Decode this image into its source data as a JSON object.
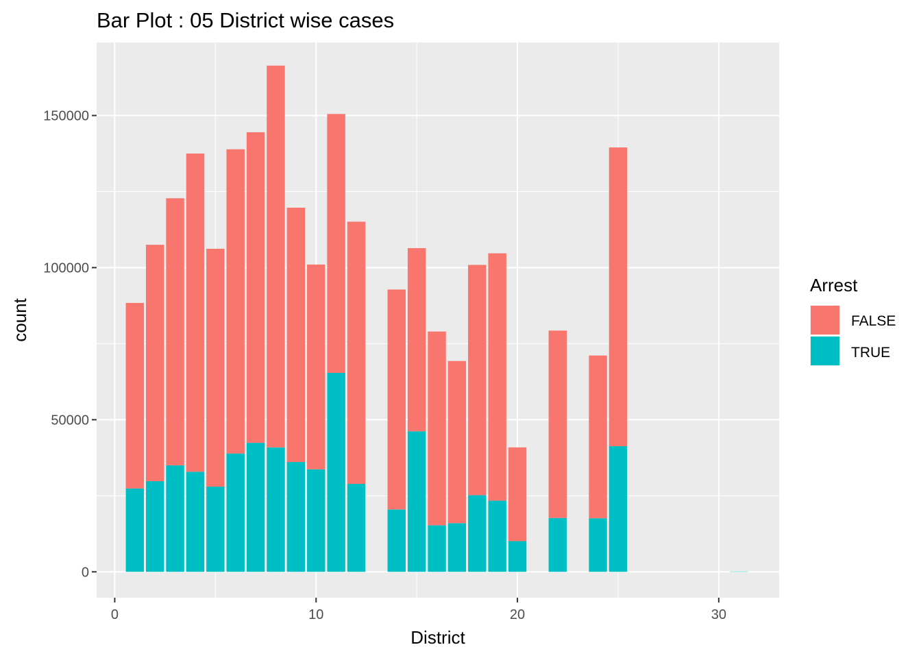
{
  "chart_data": {
    "type": "bar",
    "stacked": true,
    "title": "Bar Plot : 05 District wise cases",
    "xlabel": "District",
    "ylabel": "count",
    "xlim": [
      -0.9,
      33.0
    ],
    "ylim": [
      -8500,
      174000
    ],
    "x_ticks": [
      0,
      10,
      20,
      30
    ],
    "y_ticks": [
      0,
      50000,
      100000,
      150000
    ],
    "y_tick_labels": [
      "0",
      "50000",
      "100000",
      "150000"
    ],
    "x_tick_labels": [
      "0",
      "10",
      "20",
      "30"
    ],
    "grid": true,
    "legend": {
      "title": "Arrest",
      "position": "right"
    },
    "x": [
      1,
      2,
      3,
      4,
      5,
      6,
      7,
      8,
      9,
      10,
      11,
      12,
      14,
      15,
      16,
      17,
      18,
      19,
      20,
      22,
      24,
      25,
      31
    ],
    "series": [
      {
        "name": "TRUE",
        "color": "#00BFC4",
        "values": [
          27400,
          29800,
          35000,
          32900,
          28000,
          38900,
          42400,
          40900,
          36100,
          33700,
          65400,
          28900,
          20500,
          46200,
          15300,
          16000,
          25200,
          23400,
          10100,
          17700,
          17600,
          41300,
          100
        ]
      },
      {
        "name": "FALSE",
        "color": "#F8766D",
        "values": [
          61000,
          77700,
          87800,
          104600,
          78200,
          100000,
          102100,
          125500,
          83600,
          67300,
          85100,
          86200,
          72300,
          60200,
          63700,
          53300,
          75700,
          81300,
          30800,
          61600,
          53500,
          98200,
          0
        ]
      }
    ]
  }
}
